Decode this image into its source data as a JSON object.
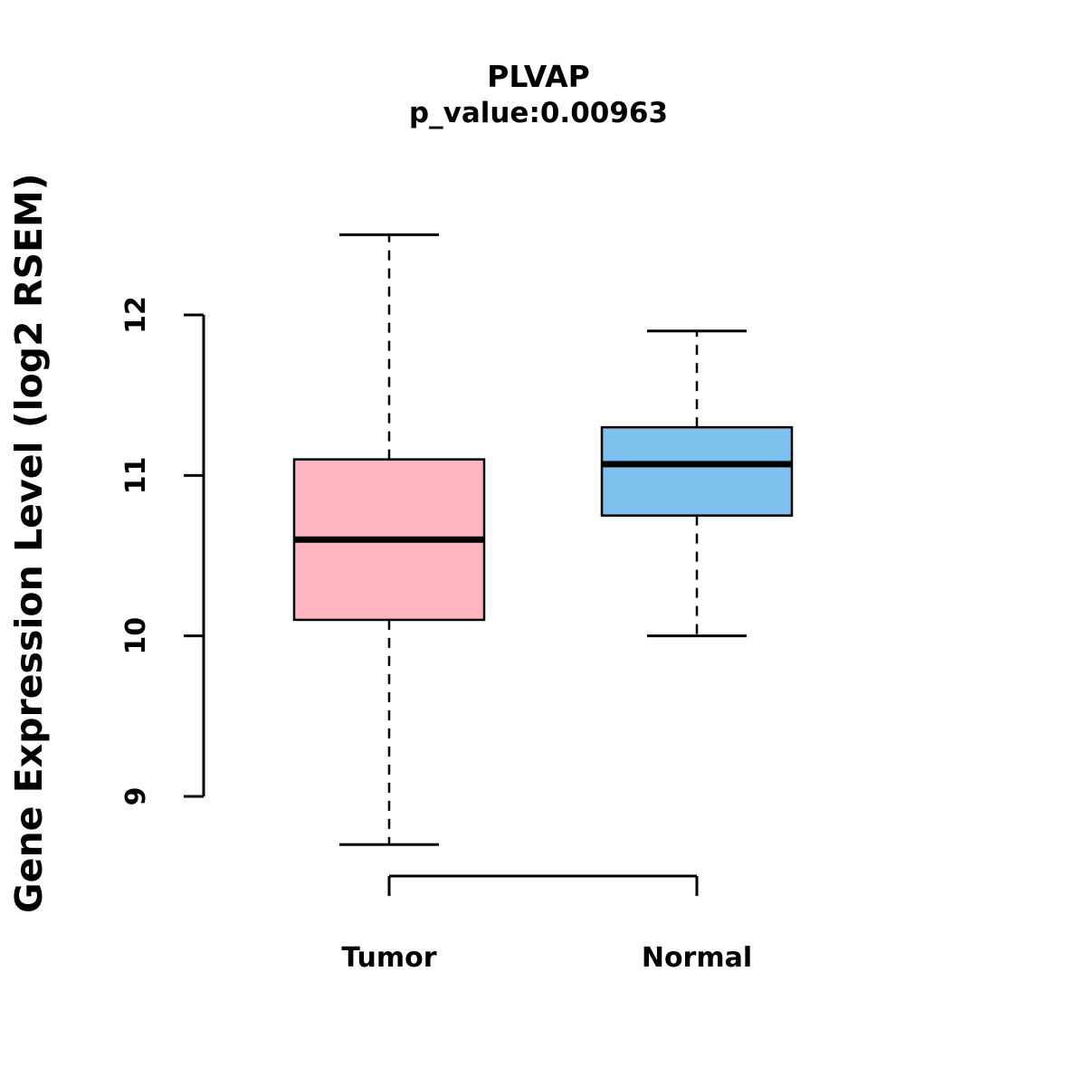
{
  "chart_data": {
    "type": "boxplot",
    "title": "PLVAP",
    "subtitle": "p_value:0.00963",
    "ylabel": "Gene Expression Level (log2 RSEM)",
    "yticks": [
      9,
      10,
      11,
      12
    ],
    "y_axis_range": [
      9,
      12
    ],
    "grid": false,
    "legend": "none",
    "categories": [
      "Tumor",
      "Normal"
    ],
    "series": [
      {
        "name": "Tumor",
        "color": "#FFB6C1",
        "lower_whisker": 8.7,
        "q1": 10.1,
        "median": 10.6,
        "q3": 11.1,
        "upper_whisker": 12.5
      },
      {
        "name": "Normal",
        "color": "#7EC0EE",
        "lower_whisker": 10.0,
        "q1": 10.75,
        "median": 11.07,
        "q3": 11.3,
        "upper_whisker": 11.9
      }
    ],
    "colors": {
      "box_border": "#000000",
      "median_line": "#000000",
      "whisker": "#000000",
      "axis": "#000000",
      "text": "#000000"
    }
  }
}
